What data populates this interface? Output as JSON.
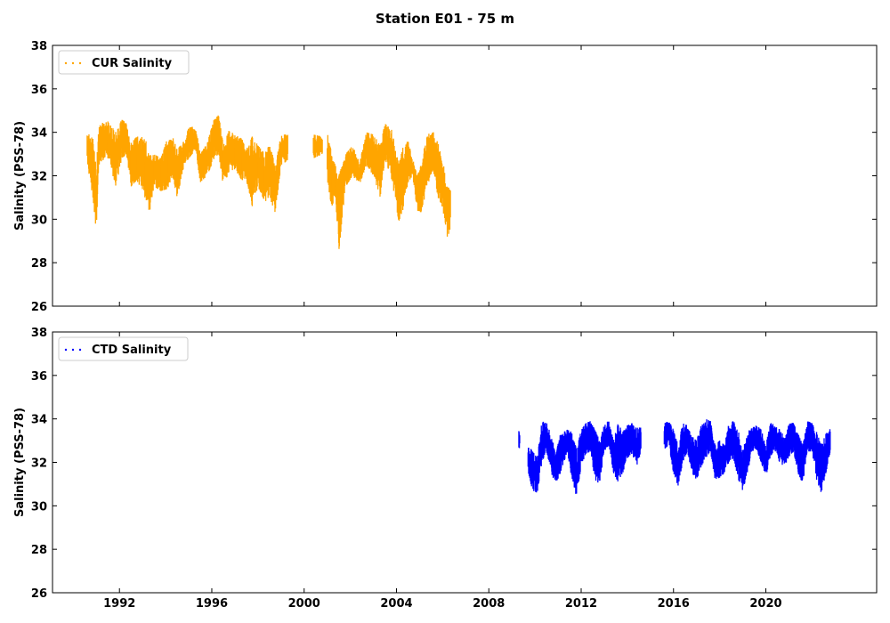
{
  "title": "Station E01 - 75 m",
  "chart_data": [
    {
      "type": "scatter",
      "ylabel": "Salinity (PSS-78)",
      "ylim": [
        26,
        38
      ],
      "xlim": [
        1989.1,
        2024.8
      ],
      "yticks": [
        "26",
        "28",
        "30",
        "32",
        "34",
        "36",
        "38"
      ],
      "xticks": [
        "1992",
        "1996",
        "2000",
        "2004",
        "2008",
        "2012",
        "2016",
        "2020"
      ],
      "xtick_labels_visible": false,
      "legend_placement": "top-left",
      "grid": false,
      "series": [
        {
          "name": "CUR Salinity",
          "color": "#ffa500",
          "envelope": [
            [
              1990.6,
              32.6,
              34.0
            ],
            [
              1990.85,
              31.0,
              33.7
            ],
            [
              1991.0,
              29.4,
              32.3
            ],
            [
              1991.1,
              32.5,
              34.4
            ],
            [
              1991.5,
              32.8,
              34.5
            ],
            [
              1991.85,
              31.5,
              34.0
            ],
            [
              1992.1,
              32.8,
              34.6
            ],
            [
              1992.3,
              33.0,
              34.4
            ],
            [
              1992.5,
              31.5,
              33.5
            ],
            [
              1992.75,
              31.8,
              33.8
            ],
            [
              1993.1,
              31.0,
              33.8
            ],
            [
              1993.3,
              30.2,
              33.0
            ],
            [
              1993.5,
              31.5,
              33.0
            ],
            [
              1993.8,
              31.3,
              32.8
            ],
            [
              1994.1,
              31.4,
              33.8
            ],
            [
              1994.3,
              32.0,
              33.8
            ],
            [
              1994.5,
              31.0,
              33.2
            ],
            [
              1994.8,
              32.5,
              33.6
            ],
            [
              1995.0,
              32.8,
              34.2
            ],
            [
              1995.3,
              33.2,
              34.3
            ],
            [
              1995.5,
              31.7,
              33.0
            ],
            [
              1995.8,
              32.0,
              33.5
            ],
            [
              1996.1,
              32.8,
              34.6
            ],
            [
              1996.3,
              33.0,
              34.8
            ],
            [
              1996.5,
              31.5,
              33.4
            ],
            [
              1996.75,
              32.2,
              34.1
            ],
            [
              1997.0,
              32.3,
              33.9
            ],
            [
              1997.3,
              31.8,
              33.7
            ],
            [
              1997.5,
              31.8,
              33.2
            ],
            [
              1997.75,
              30.6,
              33.8
            ],
            [
              1998.0,
              31.5,
              33.4
            ],
            [
              1998.3,
              30.8,
              33.0
            ],
            [
              1998.5,
              31.0,
              33.6
            ],
            [
              1998.75,
              30.3,
              32.4
            ],
            [
              1999.0,
              32.5,
              33.9
            ],
            [
              1999.3,
              32.7,
              33.9
            ],
            null,
            [
              2000.4,
              32.8,
              33.9
            ],
            [
              2000.8,
              33.0,
              33.8
            ],
            null,
            [
              2001.0,
              31.8,
              34.0
            ],
            [
              2001.2,
              30.5,
              33.0
            ],
            [
              2001.35,
              31.0,
              32.5
            ],
            [
              2001.5,
              28.5,
              32.0
            ],
            [
              2001.8,
              31.5,
              33.0
            ],
            [
              2002.1,
              32.0,
              33.4
            ],
            [
              2002.4,
              31.6,
              32.6
            ],
            [
              2002.7,
              32.5,
              34.0
            ],
            [
              2003.0,
              32.0,
              33.9
            ],
            [
              2003.3,
              31.0,
              33.4
            ],
            [
              2003.5,
              32.8,
              34.4
            ],
            [
              2003.8,
              31.8,
              34.1
            ],
            [
              2004.1,
              29.9,
              32.5
            ],
            [
              2004.3,
              30.5,
              33.4
            ],
            [
              2004.5,
              31.7,
              33.6
            ],
            [
              2004.7,
              32.0,
              32.8
            ],
            [
              2004.9,
              30.4,
              32.0
            ],
            [
              2005.1,
              30.3,
              32.6
            ],
            [
              2005.3,
              31.5,
              33.9
            ],
            [
              2005.6,
              32.2,
              34.0
            ],
            [
              2005.8,
              31.0,
              33.5
            ],
            [
              2006.0,
              30.5,
              32.8
            ],
            [
              2006.2,
              29.2,
              31.5
            ],
            [
              2006.35,
              29.5,
              31.4
            ]
          ]
        }
      ]
    },
    {
      "type": "scatter",
      "ylabel": "Salinity (PSS-78)",
      "ylim": [
        26,
        38
      ],
      "xlim": [
        1989.1,
        2024.8
      ],
      "yticks": [
        "26",
        "28",
        "30",
        "32",
        "34",
        "36",
        "38"
      ],
      "xticks": [
        "1992",
        "1996",
        "2000",
        "2004",
        "2008",
        "2012",
        "2016",
        "2020"
      ],
      "xtick_labels_visible": true,
      "legend_placement": "top-left",
      "grid": false,
      "series": [
        {
          "name": "CTD Salinity",
          "color": "#0000ff",
          "envelope": [
            [
              2009.3,
              32.6,
              33.5
            ],
            [
              2009.35,
              32.6,
              33.4
            ],
            null,
            [
              2009.7,
              31.5,
              32.8
            ],
            [
              2009.9,
              30.7,
              32.5
            ],
            [
              2010.1,
              30.6,
              32.2
            ],
            [
              2010.3,
              32.0,
              33.9
            ],
            [
              2010.5,
              32.5,
              33.8
            ],
            [
              2010.7,
              31.5,
              33.3
            ],
            [
              2010.9,
              31.0,
              32.4
            ],
            [
              2011.1,
              31.5,
              33.3
            ],
            [
              2011.4,
              32.5,
              33.5
            ],
            [
              2011.6,
              31.2,
              33.4
            ],
            [
              2011.8,
              30.4,
              32.6
            ],
            [
              2012.0,
              31.8,
              33.5
            ],
            [
              2012.2,
              32.4,
              33.8
            ],
            [
              2012.4,
              32.5,
              33.9
            ],
            [
              2012.6,
              31.2,
              33.5
            ],
            [
              2012.8,
              31.0,
              33.0
            ],
            [
              2013.0,
              32.5,
              33.8
            ],
            [
              2013.2,
              32.8,
              33.9
            ],
            [
              2013.4,
              31.5,
              33.0
            ],
            [
              2013.6,
              31.1,
              33.8
            ],
            [
              2013.8,
              31.5,
              33.4
            ],
            [
              2014.0,
              32.2,
              33.7
            ],
            [
              2014.2,
              32.4,
              33.8
            ],
            [
              2014.4,
              31.8,
              33.6
            ],
            [
              2014.6,
              32.5,
              33.6
            ],
            null,
            [
              2015.6,
              32.6,
              33.8
            ],
            [
              2015.8,
              32.8,
              33.9
            ],
            [
              2016.0,
              31.5,
              33.5
            ],
            [
              2016.2,
              30.9,
              32.8
            ],
            [
              2016.4,
              32.0,
              33.8
            ],
            [
              2016.6,
              32.5,
              33.7
            ],
            [
              2016.8,
              31.5,
              33.2
            ],
            [
              2017.0,
              31.2,
              33.0
            ],
            [
              2017.2,
              31.8,
              33.7
            ],
            [
              2017.4,
              32.2,
              34.0
            ],
            [
              2017.6,
              32.5,
              33.9
            ],
            [
              2017.8,
              31.2,
              32.8
            ],
            [
              2018.0,
              31.3,
              33.0
            ],
            [
              2018.2,
              31.5,
              32.8
            ],
            [
              2018.4,
              32.0,
              33.8
            ],
            [
              2018.6,
              32.2,
              33.9
            ],
            [
              2018.8,
              31.2,
              33.5
            ],
            [
              2019.0,
              30.7,
              32.5
            ],
            [
              2019.2,
              31.5,
              33.4
            ],
            [
              2019.4,
              32.5,
              33.6
            ],
            [
              2019.6,
              32.6,
              33.7
            ],
            [
              2019.8,
              32.0,
              33.5
            ],
            [
              2020.0,
              31.3,
              32.8
            ],
            [
              2020.2,
              32.3,
              33.8
            ],
            [
              2020.4,
              32.5,
              33.8
            ],
            [
              2020.6,
              32.0,
              33.5
            ],
            [
              2020.8,
              31.8,
              33.2
            ],
            [
              2021.0,
              32.2,
              33.9
            ],
            [
              2021.2,
              32.5,
              33.8
            ],
            [
              2021.4,
              31.5,
              33.3
            ],
            [
              2021.6,
              31.0,
              32.8
            ],
            [
              2021.8,
              32.5,
              33.9
            ],
            [
              2022.0,
              32.5,
              33.8
            ],
            [
              2022.2,
              31.2,
              33.4
            ],
            [
              2022.4,
              30.6,
              32.8
            ],
            [
              2022.6,
              31.5,
              33.3
            ],
            [
              2022.8,
              32.5,
              33.6
            ]
          ]
        }
      ]
    }
  ]
}
